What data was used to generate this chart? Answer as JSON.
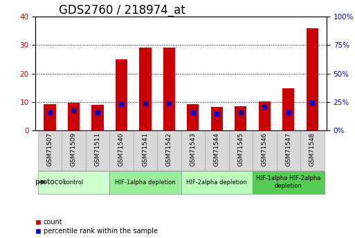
{
  "title": "GDS2760 / 218974_at",
  "samples": [
    "GSM71507",
    "GSM71509",
    "GSM71511",
    "GSM71540",
    "GSM71541",
    "GSM71542",
    "GSM71543",
    "GSM71544",
    "GSM71545",
    "GSM71546",
    "GSM71547",
    "GSM71548"
  ],
  "counts": [
    9.2,
    9.8,
    9.0,
    25.0,
    29.2,
    29.0,
    9.2,
    8.3,
    8.6,
    10.3,
    14.8,
    36.0
  ],
  "percentile_ranks": [
    15.5,
    17.5,
    16.0,
    23.0,
    23.5,
    23.5,
    15.8,
    14.8,
    15.5,
    20.5,
    16.0,
    24.5
  ],
  "ylim_left": [
    0,
    40
  ],
  "ylim_right": [
    0,
    100
  ],
  "yticks_left": [
    0,
    10,
    20,
    30,
    40
  ],
  "yticks_right": [
    0,
    25,
    50,
    75,
    100
  ],
  "bar_color": "#cc0000",
  "dot_color": "#0000cc",
  "protocol_groups": [
    {
      "label": "control",
      "start": 0,
      "end": 2,
      "color": "#ccffcc"
    },
    {
      "label": "HIF-1alpha depletion",
      "start": 3,
      "end": 5,
      "color": "#99ee99"
    },
    {
      "label": "HIF-2alpha depletion",
      "start": 6,
      "end": 8,
      "color": "#bbffbb"
    },
    {
      "label": "HIF-1alpha HIF-2alpha\ndepletion",
      "start": 9,
      "end": 11,
      "color": "#55cc55"
    }
  ],
  "xlabel_protocol": "protocol",
  "legend_count_label": "count",
  "legend_percentile_label": "percentile rank within the sample",
  "tick_label_color_left": "#cc0000",
  "tick_label_color_right": "#0000cc",
  "title_fontsize": 12,
  "tick_fontsize": 7.5,
  "bar_width": 0.5,
  "sample_cell_color": "#d8d8d8",
  "sample_cell_edgecolor": "#aaaaaa"
}
